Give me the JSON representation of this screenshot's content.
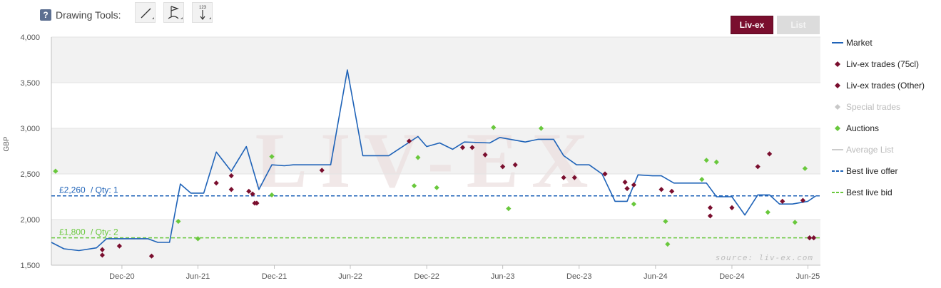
{
  "toolbar": {
    "help_glyph": "?",
    "label": "Drawing Tools:",
    "tools": [
      {
        "icon": "line-tool-icon"
      },
      {
        "icon": "flag-tool-icon"
      },
      {
        "icon": "measure-tool-icon",
        "text": "123"
      }
    ]
  },
  "tabs": {
    "active": "Liv-ex",
    "inactive": "List"
  },
  "colors": {
    "market": "#1f63b8",
    "trades75": "#7a0e2e",
    "tradesOther": "#7a0e2e",
    "special": "#c8c8c8",
    "auctions": "#69c83c",
    "averageList": "#cccccc",
    "offer": "#1f63b8",
    "bid": "#69c83c",
    "accent": "#7a0e2e"
  },
  "legend": [
    {
      "label": "Market",
      "symbol": "line",
      "color": "#1f63b8",
      "dim": false
    },
    {
      "label": "Liv-ex trades (75cl)",
      "symbol": "diamond",
      "color": "#7a0e2e",
      "dim": false
    },
    {
      "label": "Liv-ex trades (Other)",
      "symbol": "diamond",
      "color": "#7a0e2e",
      "dim": false
    },
    {
      "label": "Special trades",
      "symbol": "diamond",
      "color": "#c8c8c8",
      "dim": true
    },
    {
      "label": "Auctions",
      "symbol": "diamond",
      "color": "#69c83c",
      "dim": false
    },
    {
      "label": "Average List",
      "symbol": "line",
      "color": "#cccccc",
      "dim": true
    },
    {
      "label": "Best live offer",
      "symbol": "dash",
      "color": "#1f63b8",
      "dim": false
    },
    {
      "label": "Best live bid",
      "symbol": "dash",
      "color": "#69c83c",
      "dim": false
    }
  ],
  "chart_data": {
    "type": "line",
    "ylabel": "GBP",
    "ylim": [
      1500,
      4000
    ],
    "yticks": [
      1500,
      2000,
      2500,
      3000,
      3500,
      4000
    ],
    "ytick_labels": [
      "1,500",
      "2,000",
      "2,500",
      "3,000",
      "3,500",
      "4,000"
    ],
    "xlim": [
      "2020-06-15",
      "2025-07-01"
    ],
    "xticks": [
      "2020-12-01",
      "2021-06-01",
      "2021-12-01",
      "2022-06-01",
      "2022-12-01",
      "2023-06-01",
      "2023-12-01",
      "2024-06-01",
      "2024-12-01",
      "2025-06-01"
    ],
    "xtick_labels": [
      "Dec-20",
      "Jun-21",
      "Dec-21",
      "Jun-22",
      "Dec-22",
      "Jun-23",
      "Dec-23",
      "Jun-24",
      "Dec-24",
      "Jun-25"
    ],
    "grid": true,
    "legend_position": "right",
    "watermark": "LIV-EX",
    "source_text": "source: liv-ex.com",
    "series": [
      {
        "name": "Market",
        "kind": "line",
        "points": [
          [
            "2020-06-15",
            1750
          ],
          [
            "2020-07-15",
            1680
          ],
          [
            "2020-08-20",
            1660
          ],
          [
            "2020-10-01",
            1690
          ],
          [
            "2020-10-25",
            1790
          ],
          [
            "2020-12-15",
            1790
          ],
          [
            "2021-02-01",
            1790
          ],
          [
            "2021-02-25",
            1750
          ],
          [
            "2021-03-25",
            1750
          ],
          [
            "2021-04-20",
            2390
          ],
          [
            "2021-05-15",
            2290
          ],
          [
            "2021-06-15",
            2290
          ],
          [
            "2021-07-15",
            2740
          ],
          [
            "2021-08-20",
            2530
          ],
          [
            "2021-09-25",
            2800
          ],
          [
            "2021-10-25",
            2330
          ],
          [
            "2021-11-25",
            2600
          ],
          [
            "2021-12-25",
            2590
          ],
          [
            "2022-01-15",
            2600
          ],
          [
            "2022-04-15",
            2600
          ],
          [
            "2022-05-25",
            3640
          ],
          [
            "2022-07-01",
            2700
          ],
          [
            "2022-09-01",
            2700
          ],
          [
            "2022-11-10",
            2910
          ],
          [
            "2022-12-01",
            2800
          ],
          [
            "2023-01-01",
            2840
          ],
          [
            "2023-02-01",
            2770
          ],
          [
            "2023-03-01",
            2850
          ],
          [
            "2023-05-01",
            2840
          ],
          [
            "2023-05-25",
            2900
          ],
          [
            "2023-07-25",
            2850
          ],
          [
            "2023-08-25",
            2880
          ],
          [
            "2023-10-01",
            2880
          ],
          [
            "2023-10-25",
            2700
          ],
          [
            "2023-11-25",
            2600
          ],
          [
            "2023-12-25",
            2600
          ],
          [
            "2024-01-25",
            2500
          ],
          [
            "2024-02-25",
            2200
          ],
          [
            "2024-03-25",
            2200
          ],
          [
            "2024-04-20",
            2490
          ],
          [
            "2024-05-25",
            2480
          ],
          [
            "2024-06-15",
            2480
          ],
          [
            "2024-07-15",
            2400
          ],
          [
            "2024-10-01",
            2400
          ],
          [
            "2024-10-25",
            2250
          ],
          [
            "2024-12-01",
            2250
          ],
          [
            "2025-01-01",
            2050
          ],
          [
            "2025-02-01",
            2270
          ],
          [
            "2025-03-01",
            2270
          ],
          [
            "2025-03-25",
            2170
          ],
          [
            "2025-04-25",
            2170
          ],
          [
            "2025-06-01",
            2200
          ],
          [
            "2025-06-20",
            2260
          ]
        ]
      },
      {
        "name": "Liv-ex trades (75cl)",
        "kind": "scatter",
        "points": [
          [
            "2020-10-15",
            1670
          ],
          [
            "2020-10-15",
            1610
          ],
          [
            "2020-11-25",
            1710
          ],
          [
            "2021-02-10",
            1600
          ],
          [
            "2021-07-15",
            2400
          ],
          [
            "2021-08-20",
            2480
          ],
          [
            "2021-08-20",
            2330
          ],
          [
            "2021-10-01",
            2310
          ],
          [
            "2021-10-10",
            2280
          ],
          [
            "2021-10-15",
            2180
          ],
          [
            "2021-10-20",
            2180
          ],
          [
            "2022-03-25",
            2540
          ],
          [
            "2022-10-20",
            2860
          ],
          [
            "2023-02-25",
            2790
          ],
          [
            "2023-03-20",
            2790
          ],
          [
            "2023-04-20",
            2710
          ],
          [
            "2023-06-01",
            2580
          ],
          [
            "2023-07-01",
            2600
          ],
          [
            "2023-10-25",
            2460
          ],
          [
            "2023-11-20",
            2460
          ],
          [
            "2024-02-01",
            2500
          ],
          [
            "2024-03-20",
            2410
          ],
          [
            "2024-03-25",
            2340
          ],
          [
            "2024-04-10",
            2380
          ],
          [
            "2024-06-15",
            2330
          ],
          [
            "2024-07-10",
            2310
          ],
          [
            "2024-10-10",
            2130
          ],
          [
            "2024-10-10",
            2040
          ],
          [
            "2024-12-01",
            2130
          ],
          [
            "2025-02-01",
            2580
          ],
          [
            "2025-03-01",
            2720
          ],
          [
            "2025-04-01",
            2200
          ],
          [
            "2025-05-20",
            2210
          ],
          [
            "2025-06-05",
            1800
          ],
          [
            "2025-06-15",
            1800
          ]
        ]
      },
      {
        "name": "Auctions",
        "kind": "scatter",
        "points": [
          [
            "2020-06-25",
            2530
          ],
          [
            "2021-04-15",
            1980
          ],
          [
            "2021-06-01",
            1790
          ],
          [
            "2021-11-25",
            2690
          ],
          [
            "2021-11-25",
            2270
          ],
          [
            "2022-11-01",
            2370
          ],
          [
            "2022-11-10",
            2680
          ],
          [
            "2022-12-25",
            2350
          ],
          [
            "2023-05-10",
            3010
          ],
          [
            "2023-06-15",
            2120
          ],
          [
            "2023-09-01",
            3000
          ],
          [
            "2024-04-10",
            2170
          ],
          [
            "2024-06-25",
            1980
          ],
          [
            "2024-06-30",
            1730
          ],
          [
            "2024-09-20",
            2440
          ],
          [
            "2024-10-01",
            2650
          ],
          [
            "2024-10-25",
            2630
          ],
          [
            "2025-02-25",
            2080
          ],
          [
            "2025-05-01",
            1970
          ],
          [
            "2025-05-25",
            2560
          ]
        ]
      },
      {
        "name": "Best live offer",
        "kind": "hline",
        "value": 2260,
        "label": "£2,260",
        "qty_label": "/ Qty: 1"
      },
      {
        "name": "Best live bid",
        "kind": "hline",
        "value": 1800,
        "label": "£1,800",
        "qty_label": "/ Qty: 2"
      }
    ]
  }
}
